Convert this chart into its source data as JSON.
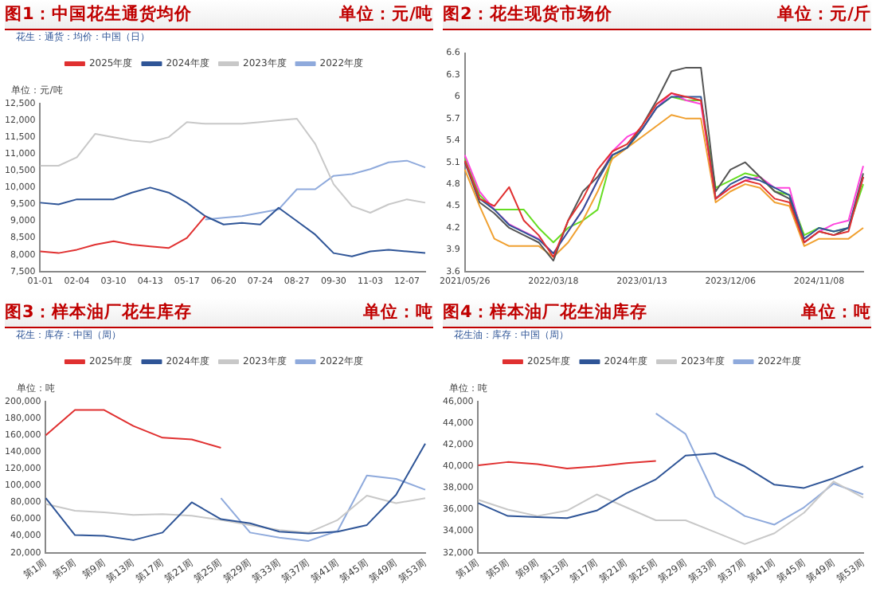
{
  "chart_data": [
    {
      "type": "line",
      "title": "图1：中国花生通货均价",
      "subtitle": "单位：元/吨",
      "annotations": [
        "花生：通货：均价：中国（日）"
      ],
      "ylabel": "单位：元/吨",
      "legend": "top",
      "grid": false,
      "marker": "none",
      "categories": [
        "01-01",
        null,
        "02-04",
        null,
        "03-10",
        null,
        "04-13",
        null,
        "05-17",
        null,
        "06-20",
        null,
        "07-24",
        null,
        "08-27",
        null,
        "09-30",
        null,
        "11-03",
        null,
        "12-07",
        null
      ],
      "ylim": [
        7500,
        12500
      ],
      "yticks": [
        {
          "value": 7500,
          "label": "7,500"
        },
        {
          "value": 8000,
          "label": "8,000"
        },
        {
          "value": 8500,
          "label": "8,500"
        },
        {
          "value": 9000,
          "label": "9,000"
        },
        {
          "value": 9500,
          "label": "9,500"
        },
        {
          "value": 10000,
          "label": "10,000"
        },
        {
          "value": 10500,
          "label": "10,500"
        },
        {
          "value": 11000,
          "label": "11,000"
        },
        {
          "value": 11500,
          "label": "11,500"
        },
        {
          "value": 12000,
          "label": "12,000"
        },
        {
          "value": 12500,
          "label": "12,500"
        }
      ],
      "series": [
        {
          "name": "2025年度",
          "color": "#e03030",
          "values": [
            8100,
            8050,
            8150,
            8300,
            8400,
            8300,
            8250,
            8200,
            8500,
            9150,
            null,
            null,
            null,
            null,
            null,
            null,
            null,
            null,
            null,
            null,
            null,
            null
          ]
        },
        {
          "name": "2024年度",
          "color": "#2f5597",
          "values": [
            9550,
            9500,
            9650,
            9650,
            9650,
            9850,
            10000,
            9850,
            9550,
            9150,
            8900,
            8950,
            8900,
            9400,
            9000,
            8600,
            8050,
            7950,
            8100,
            8150,
            8100,
            8050
          ]
        },
        {
          "name": "2023年度",
          "color": "#c8c8c8",
          "values": [
            10650,
            10650,
            10900,
            11600,
            11500,
            11400,
            11350,
            11500,
            11950,
            11900,
            11900,
            11900,
            11950,
            12000,
            12050,
            11300,
            10100,
            9450,
            9250,
            9500,
            9650,
            9550
          ]
        },
        {
          "name": "2022年度",
          "color": "#8faadc",
          "values": [
            null,
            null,
            null,
            null,
            null,
            null,
            null,
            null,
            null,
            9050,
            9100,
            9150,
            9250,
            9350,
            9950,
            9950,
            10350,
            10400,
            10550,
            10750,
            10800,
            10600
          ]
        }
      ]
    },
    {
      "type": "line",
      "title": "图2：花生现货市场价",
      "subtitle": "单位：元/斤",
      "legend": false,
      "grid": false,
      "marker": "none",
      "categories": [
        "2021/05/26",
        null,
        null,
        null,
        null,
        null,
        "2022/03/18",
        null,
        null,
        null,
        null,
        null,
        "2023/01/13",
        null,
        null,
        null,
        null,
        null,
        "2023/12/06",
        null,
        null,
        null,
        null,
        null,
        "2024/11/08",
        null,
        null,
        null
      ],
      "ylim": [
        3.6,
        6.6
      ],
      "yticks": [
        3.6,
        3.9,
        4.2,
        4.5,
        4.8,
        5.1,
        5.4,
        5.7,
        6,
        6.3,
        6.6
      ],
      "series": [
        {
          "color": "#e03030",
          "values": [
            5.12,
            4.6,
            4.5,
            4.76,
            4.3,
            4.1,
            3.8,
            4.3,
            4.6,
            5,
            5.25,
            5.35,
            5.6,
            5.9,
            6.05,
            6,
            5.95,
            4.6,
            4.75,
            4.85,
            4.8,
            4.6,
            4.55,
            4,
            4.15,
            4.1,
            4.15,
            4.9
          ]
        },
        {
          "color": "#2f5597",
          "values": [
            5.12,
            4.6,
            4.45,
            4.24,
            4.14,
            4.04,
            3.85,
            4.15,
            4.45,
            4.85,
            5.2,
            5.3,
            5.55,
            5.85,
            6,
            6,
            6,
            4.6,
            4.8,
            4.9,
            4.85,
            4.75,
            4.65,
            4.05,
            4.2,
            4.15,
            4.2,
            4.9
          ]
        },
        {
          "color": "#555555",
          "values": [
            5.1,
            4.55,
            4.4,
            4.2,
            4.1,
            4,
            3.75,
            4.3,
            4.7,
            4.9,
            5.2,
            5.3,
            5.6,
            5.95,
            6.35,
            6.4,
            6.4,
            4.7,
            5,
            5.1,
            4.9,
            4.7,
            4.6,
            4,
            4.15,
            4.1,
            4.2,
            4.95
          ]
        },
        {
          "color": "#ff44dd",
          "values": [
            5.2,
            4.7,
            4.45,
            4.25,
            4.15,
            4.05,
            3.85,
            4.15,
            4.45,
            4.85,
            5.25,
            5.45,
            5.55,
            5.85,
            6.05,
            5.95,
            5.9,
            4.6,
            4.75,
            4.85,
            4.9,
            4.75,
            4.75,
            4,
            4.15,
            4.25,
            4.3,
            5.05
          ]
        },
        {
          "color": "#f0a030",
          "values": [
            5,
            4.5,
            4.05,
            3.95,
            3.95,
            3.95,
            3.8,
            4,
            4.3,
            4.7,
            5.15,
            5.3,
            5.45,
            5.6,
            5.75,
            5.7,
            5.7,
            4.55,
            4.7,
            4.8,
            4.75,
            4.55,
            4.5,
            3.95,
            4.05,
            4.05,
            4.05,
            4.2
          ]
        },
        {
          "color": "#66dd22",
          "values": [
            5.15,
            4.65,
            4.45,
            4.45,
            4.45,
            4.2,
            4,
            4.2,
            4.3,
            4.45,
            5.2,
            5.3,
            5.55,
            5.85,
            6,
            5.95,
            5.95,
            4.75,
            4.85,
            4.95,
            4.9,
            4.7,
            4.65,
            4.1,
            4.2,
            4.15,
            4.2,
            4.8
          ]
        }
      ]
    },
    {
      "type": "line",
      "title": "图3：样本油厂花生库存",
      "subtitle": "单位：吨",
      "annotations": [
        "花生：库存：中国（周）"
      ],
      "ylabel": "单位：吨",
      "legend": "top",
      "grid": false,
      "marker": "none",
      "categories": [
        "第1周",
        "第5周",
        "第9周",
        "第13周",
        "第17周",
        "第21周",
        "第25周",
        "第29周",
        "第33周",
        "第37周",
        "第41周",
        "第45周",
        "第49周",
        "第53周"
      ],
      "ylim": [
        20000,
        200000
      ],
      "yticks": [
        {
          "value": 20000,
          "label": "20,000"
        },
        {
          "value": 40000,
          "label": "40,000"
        },
        {
          "value": 60000,
          "label": "60,000"
        },
        {
          "value": 80000,
          "label": "80,000"
        },
        {
          "value": 100000,
          "label": "100,000"
        },
        {
          "value": 120000,
          "label": "120,000"
        },
        {
          "value": 140000,
          "label": "140,000"
        },
        {
          "value": 160000,
          "label": "160,000"
        },
        {
          "value": 180000,
          "label": "180,000"
        },
        {
          "value": 200000,
          "label": "200,000"
        }
      ],
      "series": [
        {
          "name": "2025年度",
          "color": "#e03030",
          "values": [
            160000,
            190000,
            190000,
            171000,
            157000,
            155000,
            145000,
            null,
            null,
            null,
            null,
            null,
            null,
            null
          ]
        },
        {
          "name": "2024年度",
          "color": "#2f5597",
          "values": [
            85000,
            41000,
            40000,
            35000,
            44000,
            80000,
            60000,
            55000,
            45000,
            43000,
            45000,
            53000,
            89000,
            150000
          ]
        },
        {
          "name": "2023年度",
          "color": "#c8c8c8",
          "values": [
            78000,
            70000,
            68000,
            65000,
            66000,
            64000,
            59000,
            53000,
            47000,
            44000,
            59000,
            88000,
            79000,
            85000
          ]
        },
        {
          "name": "2022年度",
          "color": "#8faadc",
          "values": [
            null,
            null,
            null,
            null,
            null,
            null,
            85000,
            44000,
            38000,
            34000,
            46000,
            112000,
            108000,
            95000
          ]
        }
      ]
    },
    {
      "type": "line",
      "title": "图4：样本油厂花生油库存",
      "subtitle": "单位：吨",
      "annotations": [
        "花生油：库存：中国（周）"
      ],
      "ylabel": "单位：吨",
      "legend": "top",
      "grid": false,
      "marker": "none",
      "categories": [
        "第1周",
        "第5周",
        "第9周",
        "第13周",
        "第17周",
        "第21周",
        "第25周",
        "第29周",
        "第33周",
        "第37周",
        "第41周",
        "第45周",
        "第49周",
        "第53周"
      ],
      "ylim": [
        32000,
        46000
      ],
      "yticks": [
        {
          "value": 32000,
          "label": "32,000"
        },
        {
          "value": 34000,
          "label": "34,000"
        },
        {
          "value": 36000,
          "label": "36,000"
        },
        {
          "value": 38000,
          "label": "38,000"
        },
        {
          "value": 40000,
          "label": "40,000"
        },
        {
          "value": 42000,
          "label": "42,000"
        },
        {
          "value": 44000,
          "label": "44,000"
        },
        {
          "value": 46000,
          "label": "46,000"
        }
      ],
      "series": [
        {
          "name": "2025年度",
          "color": "#e03030",
          "values": [
            40100,
            40400,
            40200,
            39800,
            40000,
            40300,
            40500,
            null,
            null,
            null,
            null,
            null,
            null,
            null
          ]
        },
        {
          "name": "2024年度",
          "color": "#2f5597",
          "values": [
            36600,
            35400,
            35300,
            35200,
            35900,
            37500,
            38800,
            41000,
            41200,
            40000,
            38300,
            38000,
            38900,
            40000
          ]
        },
        {
          "name": "2023年度",
          "color": "#c8c8c8",
          "values": [
            36900,
            36000,
            35400,
            35900,
            37400,
            36200,
            35000,
            35000,
            33900,
            32800,
            33800,
            35700,
            38600,
            37100
          ]
        },
        {
          "name": "2022年度",
          "color": "#8faadc",
          "values": [
            null,
            null,
            null,
            null,
            null,
            null,
            44900,
            43000,
            37200,
            35400,
            34600,
            36200,
            38400,
            37400
          ]
        }
      ]
    }
  ]
}
